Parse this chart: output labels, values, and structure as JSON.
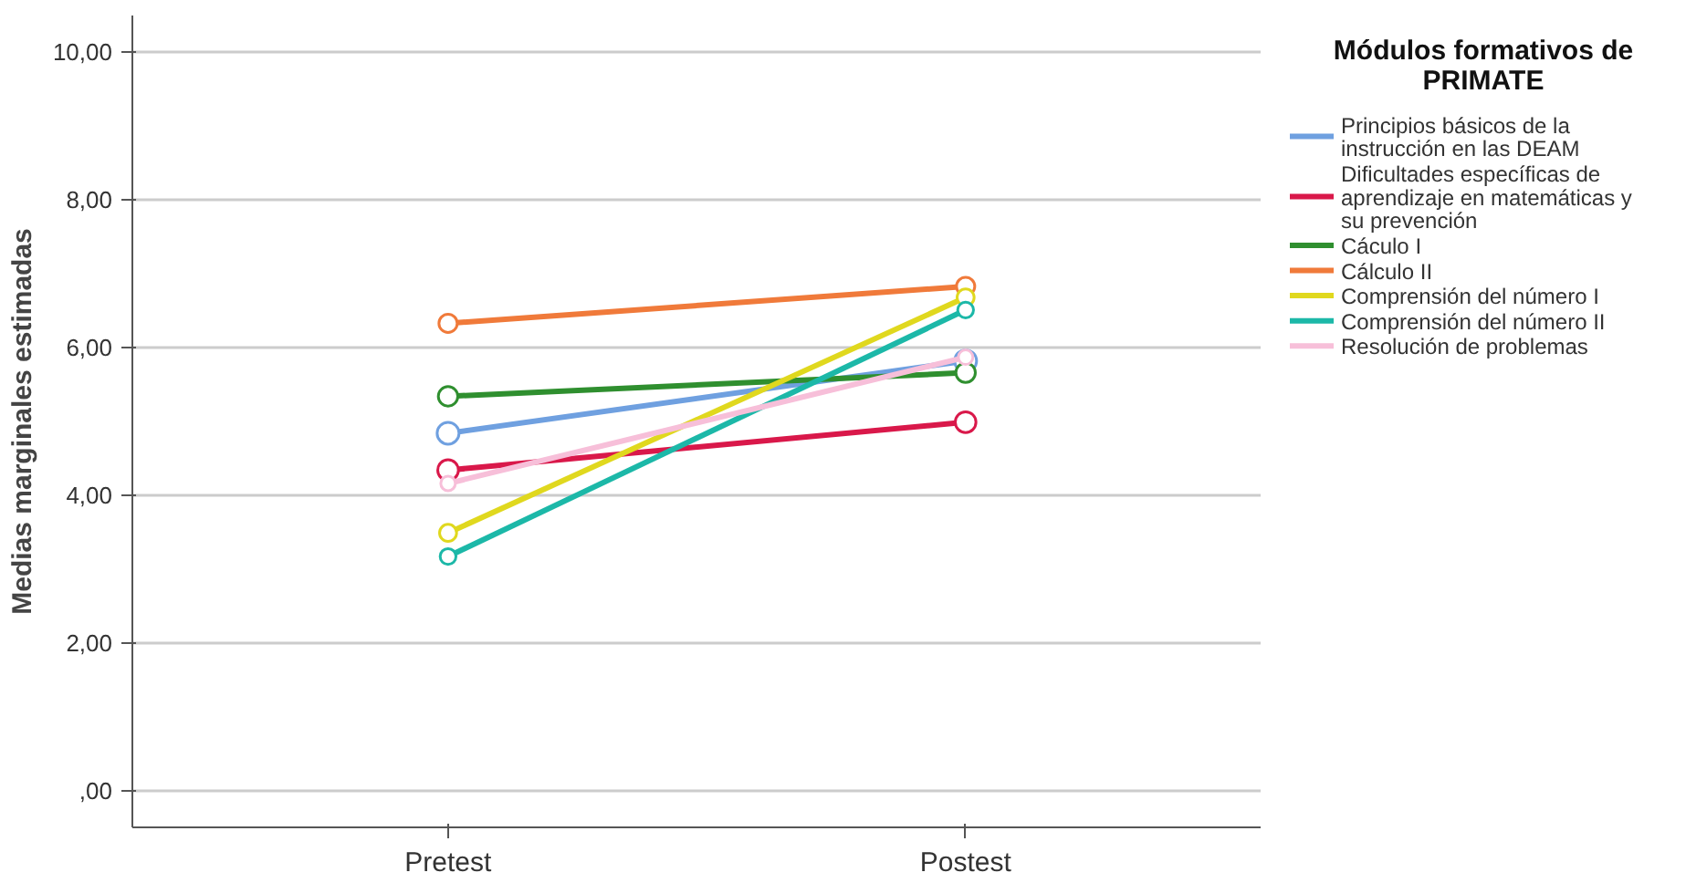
{
  "chart_data": {
    "type": "line",
    "ylabel": "Medias marginales estimadas",
    "legend_title": "Módulos formativos de PRIMATE",
    "categories": [
      "Pretest",
      "Postest"
    ],
    "series": [
      {
        "name": "Principios básicos de la instrucción en las DEAM",
        "color": "#6fa0e0",
        "values": [
          4.84,
          5.82
        ]
      },
      {
        "name": "Dificultades específicas de aprendizaje en matemáticas y su prevención",
        "color": "#d9184a",
        "values": [
          4.34,
          4.99
        ]
      },
      {
        "name": "Cáculo I",
        "color": "#2f8f2f",
        "values": [
          5.34,
          5.66
        ]
      },
      {
        "name": "Cálculo II",
        "color": "#f07a3a",
        "values": [
          6.33,
          6.83
        ]
      },
      {
        "name": "Comprensión del número I",
        "color": "#e0d81e",
        "values": [
          3.49,
          6.68
        ]
      },
      {
        "name": "Comprensión del número II",
        "color": "#1cb8a8",
        "values": [
          3.17,
          6.51
        ]
      },
      {
        "name": "Resolución de problemas",
        "color": "#f7bfd9",
        "values": [
          4.16,
          5.87
        ]
      }
    ],
    "ylim": [
      -0.5,
      10.5
    ],
    "yticks": [
      {
        "value": 0,
        "label": ",00"
      },
      {
        "value": 2,
        "label": "2,00"
      },
      {
        "value": 4,
        "label": "4,00"
      },
      {
        "value": 6,
        "label": "6,00"
      },
      {
        "value": 8,
        "label": "8,00"
      },
      {
        "value": 10,
        "label": "10,00"
      }
    ],
    "grid": "y",
    "legend": "right",
    "marker": "circle",
    "line_style": "solid"
  }
}
